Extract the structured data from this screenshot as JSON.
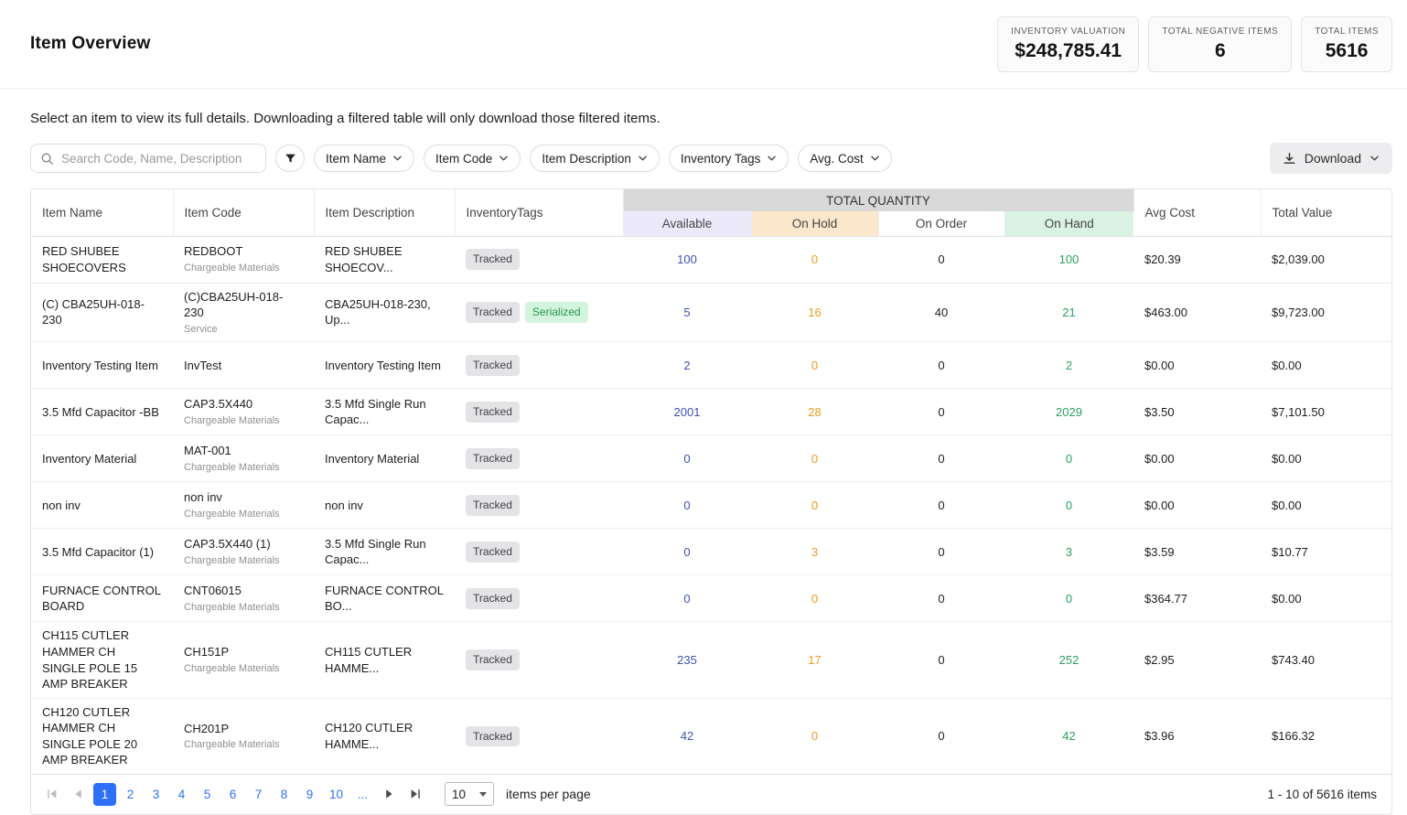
{
  "header": {
    "title": "Item Overview",
    "stats": [
      {
        "label": "INVENTORY VALUATION",
        "value": "$248,785.41"
      },
      {
        "label": "TOTAL NEGATIVE ITEMS",
        "value": "6"
      },
      {
        "label": "TOTAL ITEMS",
        "value": "5616"
      }
    ]
  },
  "subtitle": "Select an item to view its full details. Downloading a filtered table will only download those filtered items.",
  "toolbar": {
    "search_placeholder": "Search Code, Name, Description",
    "filters": [
      "Item Name",
      "Item Code",
      "Item Description",
      "Inventory Tags",
      "Avg. Cost"
    ],
    "download_label": "Download"
  },
  "table": {
    "group_header": "TOTAL QUANTITY",
    "columns": [
      "Item Name",
      "Item Code",
      "Item Description",
      "InventoryTags",
      "Available",
      "On Hold",
      "On Order",
      "On Hand",
      "Avg Cost",
      "Total Value"
    ],
    "rows": [
      {
        "name": "RED SHUBEE SHOECOVERS",
        "code": "REDBOOT",
        "code_sub": "Chargeable Materials",
        "description": "RED SHUBEE SHOECOV...",
        "tags": [
          "Tracked"
        ],
        "available": "100",
        "on_hold": "0",
        "on_order": "0",
        "on_hand": "100",
        "avg_cost": "$20.39",
        "total_value": "$2,039.00"
      },
      {
        "name": "(C) CBA25UH-018-230",
        "code": "(C)CBA25UH-018-230",
        "code_sub": "Service",
        "description": "CBA25UH-018-230, Up...",
        "tags": [
          "Tracked",
          "Serialized"
        ],
        "available": "5",
        "on_hold": "16",
        "on_order": "40",
        "on_hand": "21",
        "avg_cost": "$463.00",
        "total_value": "$9,723.00"
      },
      {
        "name": "Inventory Testing Item",
        "code": "InvTest",
        "code_sub": "",
        "description": "Inventory Testing Item",
        "tags": [
          "Tracked"
        ],
        "available": "2",
        "on_hold": "0",
        "on_order": "0",
        "on_hand": "2",
        "avg_cost": "$0.00",
        "total_value": "$0.00"
      },
      {
        "name": "3.5 Mfd Capacitor -BB",
        "code": "CAP3.5X440",
        "code_sub": "Chargeable Materials",
        "description": "3.5 Mfd Single Run Capac...",
        "tags": [
          "Tracked"
        ],
        "available": "2001",
        "on_hold": "28",
        "on_order": "0",
        "on_hand": "2029",
        "avg_cost": "$3.50",
        "total_value": "$7,101.50"
      },
      {
        "name": "Inventory Material",
        "code": "MAT-001",
        "code_sub": "Chargeable Materials",
        "description": "Inventory Material",
        "tags": [
          "Tracked"
        ],
        "available": "0",
        "on_hold": "0",
        "on_order": "0",
        "on_hand": "0",
        "avg_cost": "$0.00",
        "total_value": "$0.00"
      },
      {
        "name": "non inv",
        "code": "non inv",
        "code_sub": "Chargeable Materials",
        "description": "non inv",
        "tags": [
          "Tracked"
        ],
        "available": "0",
        "on_hold": "0",
        "on_order": "0",
        "on_hand": "0",
        "avg_cost": "$0.00",
        "total_value": "$0.00"
      },
      {
        "name": "3.5 Mfd Capacitor (1)",
        "code": "CAP3.5X440 (1)",
        "code_sub": "Chargeable Materials",
        "description": "3.5 Mfd Single Run Capac...",
        "tags": [
          "Tracked"
        ],
        "available": "0",
        "on_hold": "3",
        "on_order": "0",
        "on_hand": "3",
        "avg_cost": "$3.59",
        "total_value": "$10.77"
      },
      {
        "name": "FURNACE CONTROL BOARD",
        "code": "CNT06015",
        "code_sub": "Chargeable Materials",
        "description": "FURNACE CONTROL BO...",
        "tags": [
          "Tracked"
        ],
        "available": "0",
        "on_hold": "0",
        "on_order": "0",
        "on_hand": "0",
        "avg_cost": "$364.77",
        "total_value": "$0.00"
      },
      {
        "name": "CH115 CUTLER HAMMER CH SINGLE POLE 15 AMP BREAKER",
        "code": "CH151P",
        "code_sub": "Chargeable Materials",
        "description": "CH115 CUTLER HAMME...",
        "tags": [
          "Tracked"
        ],
        "available": "235",
        "on_hold": "17",
        "on_order": "0",
        "on_hand": "252",
        "avg_cost": "$2.95",
        "total_value": "$743.40"
      },
      {
        "name": "CH120 CUTLER HAMMER CH SINGLE POLE 20 AMP BREAKER",
        "code": "CH201P",
        "code_sub": "Chargeable Materials",
        "description": "CH120 CUTLER HAMME...",
        "tags": [
          "Tracked"
        ],
        "available": "42",
        "on_hold": "0",
        "on_order": "0",
        "on_hand": "42",
        "avg_cost": "$3.96",
        "total_value": "$166.32"
      }
    ]
  },
  "pagination": {
    "pages": [
      "1",
      "2",
      "3",
      "4",
      "5",
      "6",
      "7",
      "8",
      "9",
      "10",
      "..."
    ],
    "active_page": "1",
    "page_size": "10",
    "page_size_label": "items per page",
    "range_label": "1 - 10 of 5616 items"
  },
  "colors": {
    "accent-blue": "#2d6ff7",
    "available-blue": "#3f51b5",
    "hold-orange": "#ee9b1c",
    "hand-green": "#2ba05f",
    "available-bg": "#ece9fb",
    "hold-bg": "#fbe7cb",
    "hand-bg": "#d9f2e3",
    "group-header-bg": "#d9d9d9"
  }
}
